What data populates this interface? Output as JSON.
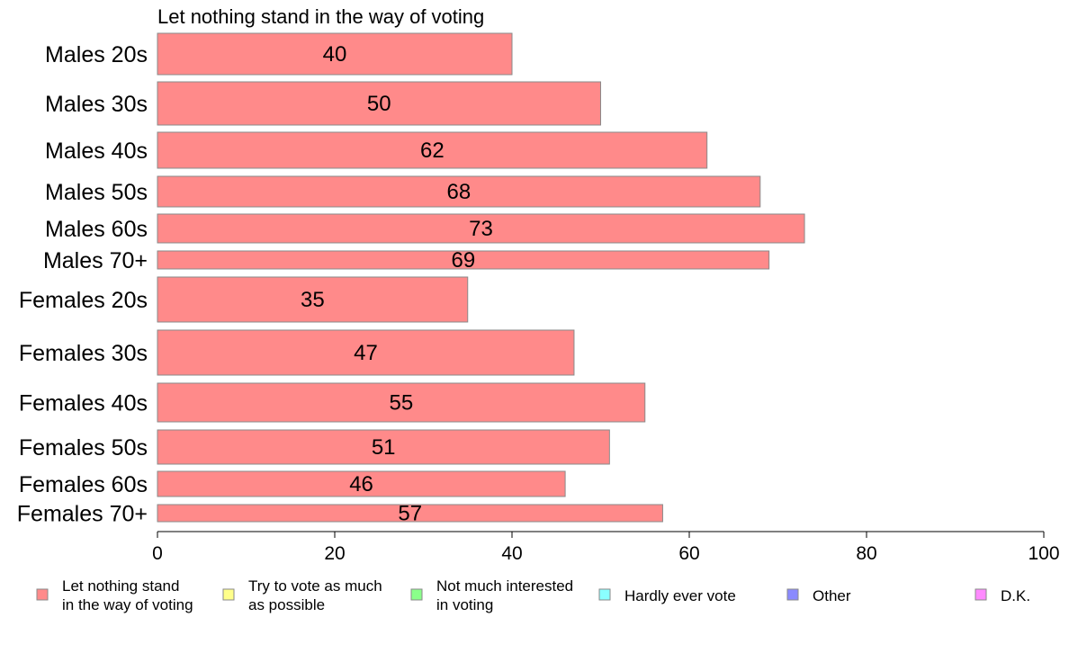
{
  "chart_data": {
    "type": "bar",
    "orientation": "horizontal",
    "title": "Let nothing stand in the way of voting",
    "categories": [
      "Males 20s",
      "Males 30s",
      "Males 40s",
      "Males 50s",
      "Males 60s",
      "Males 70+",
      "Females 20s",
      "Females 30s",
      "Females 40s",
      "Females 50s",
      "Females 60s",
      "Females 70+"
    ],
    "values": [
      40,
      50,
      62,
      68,
      73,
      69,
      35,
      47,
      55,
      51,
      46,
      57
    ],
    "bar_color": "#ff8a8a",
    "xlim": [
      0,
      100
    ],
    "xticks": [
      0,
      20,
      40,
      60,
      80,
      100
    ],
    "grid": false,
    "legend_position": "bottom",
    "legend": [
      {
        "label": "Let nothing stand\nin the way of voting",
        "color": "#ff8a8a"
      },
      {
        "label": "Try to vote as much\nas possible",
        "color": "#ffff8a"
      },
      {
        "label": "Not much interested\nin voting",
        "color": "#8aff8a"
      },
      {
        "label": "Hardly ever vote",
        "color": "#8affff"
      },
      {
        "label": "Other",
        "color": "#8a8aff"
      },
      {
        "label": "D.K.",
        "color": "#ff8aff"
      }
    ]
  }
}
